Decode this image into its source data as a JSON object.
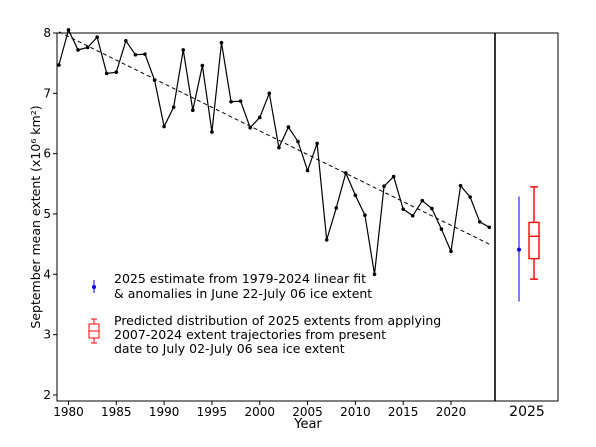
{
  "chart_data": {
    "type": "line",
    "xlabel": "Year",
    "ylabel": "September mean extent (x10⁶ km²)",
    "ylim": [
      1.9,
      8.0
    ],
    "xlim": [
      1978.8,
      2024.6
    ],
    "x_ticks": [
      1980,
      1985,
      1990,
      1995,
      2000,
      2005,
      2010,
      2015,
      2020
    ],
    "y_ticks": [
      2,
      3,
      4,
      5,
      6,
      7,
      8
    ],
    "grid": false,
    "series": [
      {
        "color": "#000000",
        "x": [
          1979,
          1980,
          1981,
          1982,
          1983,
          1984,
          1985,
          1986,
          1987,
          1988,
          1989,
          1990,
          1991,
          1992,
          1993,
          1994,
          1995,
          1996,
          1997,
          1998,
          1999,
          2000,
          2001,
          2002,
          2003,
          2004,
          2005,
          2006,
          2007,
          2008,
          2009,
          2010,
          2011,
          2012,
          2013,
          2014,
          2015,
          2016,
          2017,
          2018,
          2019,
          2020,
          2021,
          2022,
          2023,
          2024
        ],
        "values": [
          7.47,
          8.05,
          7.72,
          7.76,
          7.93,
          7.33,
          7.35,
          7.87,
          7.64,
          7.65,
          7.22,
          6.45,
          6.77,
          7.72,
          6.72,
          7.46,
          6.36,
          7.84,
          6.86,
          6.87,
          6.43,
          6.6,
          7.0,
          6.1,
          6.44,
          6.2,
          5.72,
          6.17,
          4.57,
          5.1,
          5.68,
          5.31,
          4.98,
          4.0,
          5.46,
          5.62,
          5.08,
          4.97,
          5.22,
          5.09,
          4.75,
          4.38,
          5.47,
          5.28,
          4.87,
          4.78
        ]
      }
    ],
    "trend_line": {
      "x": [
        1979,
        2024
      ],
      "values": [
        8.02,
        4.5
      ],
      "style": "dashed",
      "color": "#000000"
    },
    "panel_2025": {
      "tick_label": "2025",
      "estimate": {
        "value": 4.41,
        "low": 3.55,
        "high": 5.29,
        "color": "#0000ff"
      },
      "box": {
        "whisker_low": 3.92,
        "q1": 4.26,
        "median": 4.63,
        "q3": 4.86,
        "whisker_high": 5.45,
        "color": "#ff0000"
      }
    },
    "legend": {
      "placement": "center-left",
      "entries": [
        {
          "lines": [
            "2025 estimate from 1979-2024 linear fit",
            "& anomalies in June 22-July 06 ice extent"
          ]
        },
        {
          "lines": [
            "Predicted distribution of 2025 extents from applying",
            "2007-2024 extent trajectories from present",
            "date to July 02-July 06 sea ice extent"
          ]
        }
      ]
    }
  }
}
